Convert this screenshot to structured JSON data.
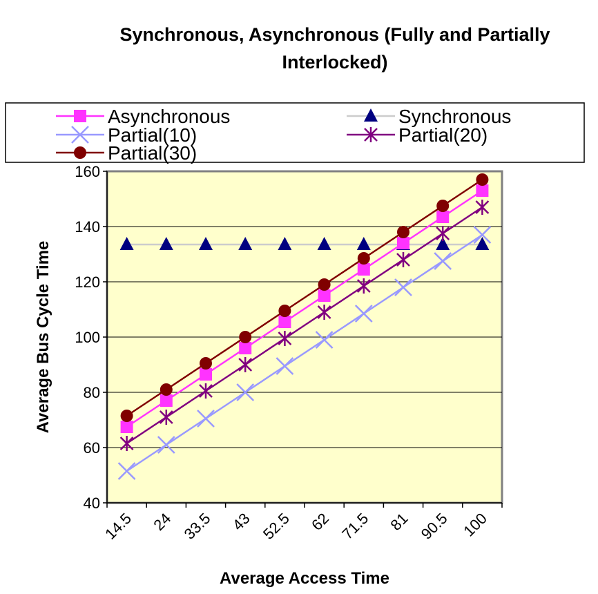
{
  "chart_data": {
    "type": "line",
    "title": "Synchronous, Asynchronous (Fully and Partially Interlocked)",
    "xlabel": "Average Access Time",
    "ylabel": "Average Bus Cycle Time",
    "categories": [
      "14.5",
      "24",
      "33.5",
      "43",
      "52.5",
      "62",
      "71.5",
      "81",
      "90.5",
      "100"
    ],
    "ylim": [
      40,
      160
    ],
    "yticks": [
      "40",
      "60",
      "80",
      "100",
      "120",
      "140",
      "160"
    ],
    "grid": "horizontal major lines",
    "legend_position": "top",
    "plot_background": "#ffffcc",
    "series": [
      {
        "name": "Asynchronous",
        "color": "#ff33ff",
        "marker": "square",
        "values": [
          67.5,
          77,
          86.5,
          96,
          105.5,
          115,
          124.5,
          134,
          143.5,
          153
        ]
      },
      {
        "name": "Synchronous",
        "color": "#cccccc",
        "marker_color": "#000080",
        "marker": "triangle",
        "values": [
          133.5,
          133.5,
          133.5,
          133.5,
          133.5,
          133.5,
          133.5,
          133.5,
          133.5,
          133.5
        ]
      },
      {
        "name": "Partial(10)",
        "color": "#9999ff",
        "marker": "x",
        "values": [
          51.5,
          61,
          70.5,
          80,
          89.5,
          99,
          108.5,
          118,
          127.5,
          137
        ]
      },
      {
        "name": "Partial(20)",
        "color": "#800080",
        "marker": "star",
        "values": [
          61.5,
          71,
          80.5,
          90,
          99.5,
          109,
          118.5,
          128,
          137.5,
          147
        ]
      },
      {
        "name": "Partial(30)",
        "color": "#800000",
        "marker": "circle",
        "values": [
          71.5,
          81,
          90.5,
          100,
          109.5,
          119,
          128.5,
          138,
          147.5,
          157
        ]
      }
    ]
  }
}
